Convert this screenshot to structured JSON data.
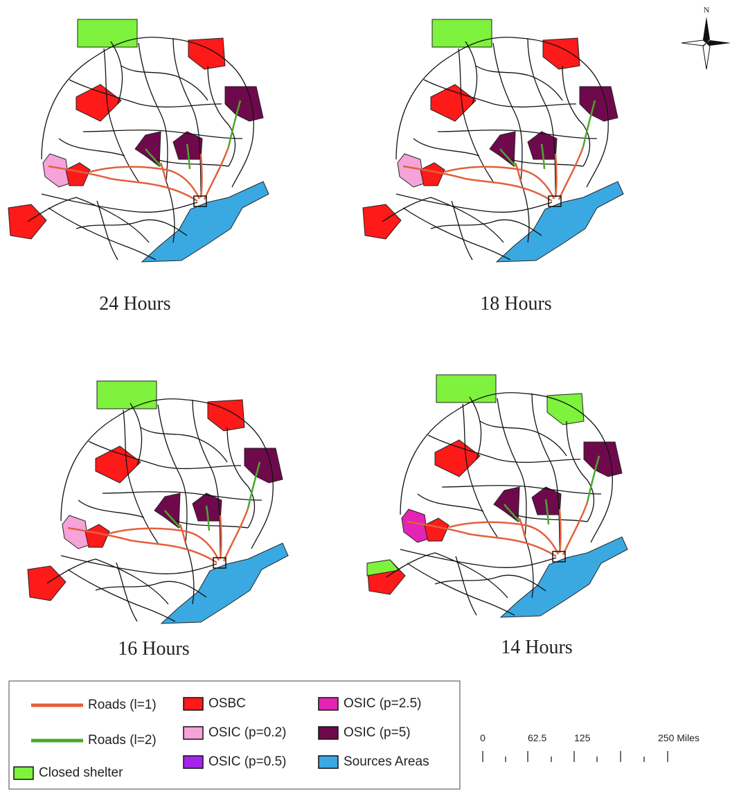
{
  "panels": [
    {
      "label": "24 Hours"
    },
    {
      "label": "18 Hours"
    },
    {
      "label": "16 Hours"
    },
    {
      "label": "14 Hours"
    }
  ],
  "north": "N",
  "legend": {
    "items": [
      {
        "label": "Roads (l=1)",
        "color": "#e2603c",
        "kind": "line"
      },
      {
        "label": "Roads (l=2)",
        "color": "#4aa82a",
        "kind": "line"
      },
      {
        "label": "Closed shelter",
        "color": "#7ef23c",
        "kind": "box"
      },
      {
        "label": "OSBC",
        "color": "#ff1a1a",
        "kind": "box"
      },
      {
        "label": "OSIC (p=0.2)",
        "color": "#f5a3d9",
        "kind": "box"
      },
      {
        "label": "OSIC (p=0.5)",
        "color": "#a424ee",
        "kind": "box"
      },
      {
        "label": "OSIC (p=2.5)",
        "color": "#e324b4",
        "kind": "box"
      },
      {
        "label": "OSIC (p=5)",
        "color": "#6e0a4c",
        "kind": "box"
      },
      {
        "label": "Sources Areas",
        "color": "#3aa9e2",
        "kind": "box"
      }
    ]
  },
  "scale_bar": {
    "labels": [
      "0",
      "62.5",
      "125",
      "250 Miles"
    ]
  }
}
